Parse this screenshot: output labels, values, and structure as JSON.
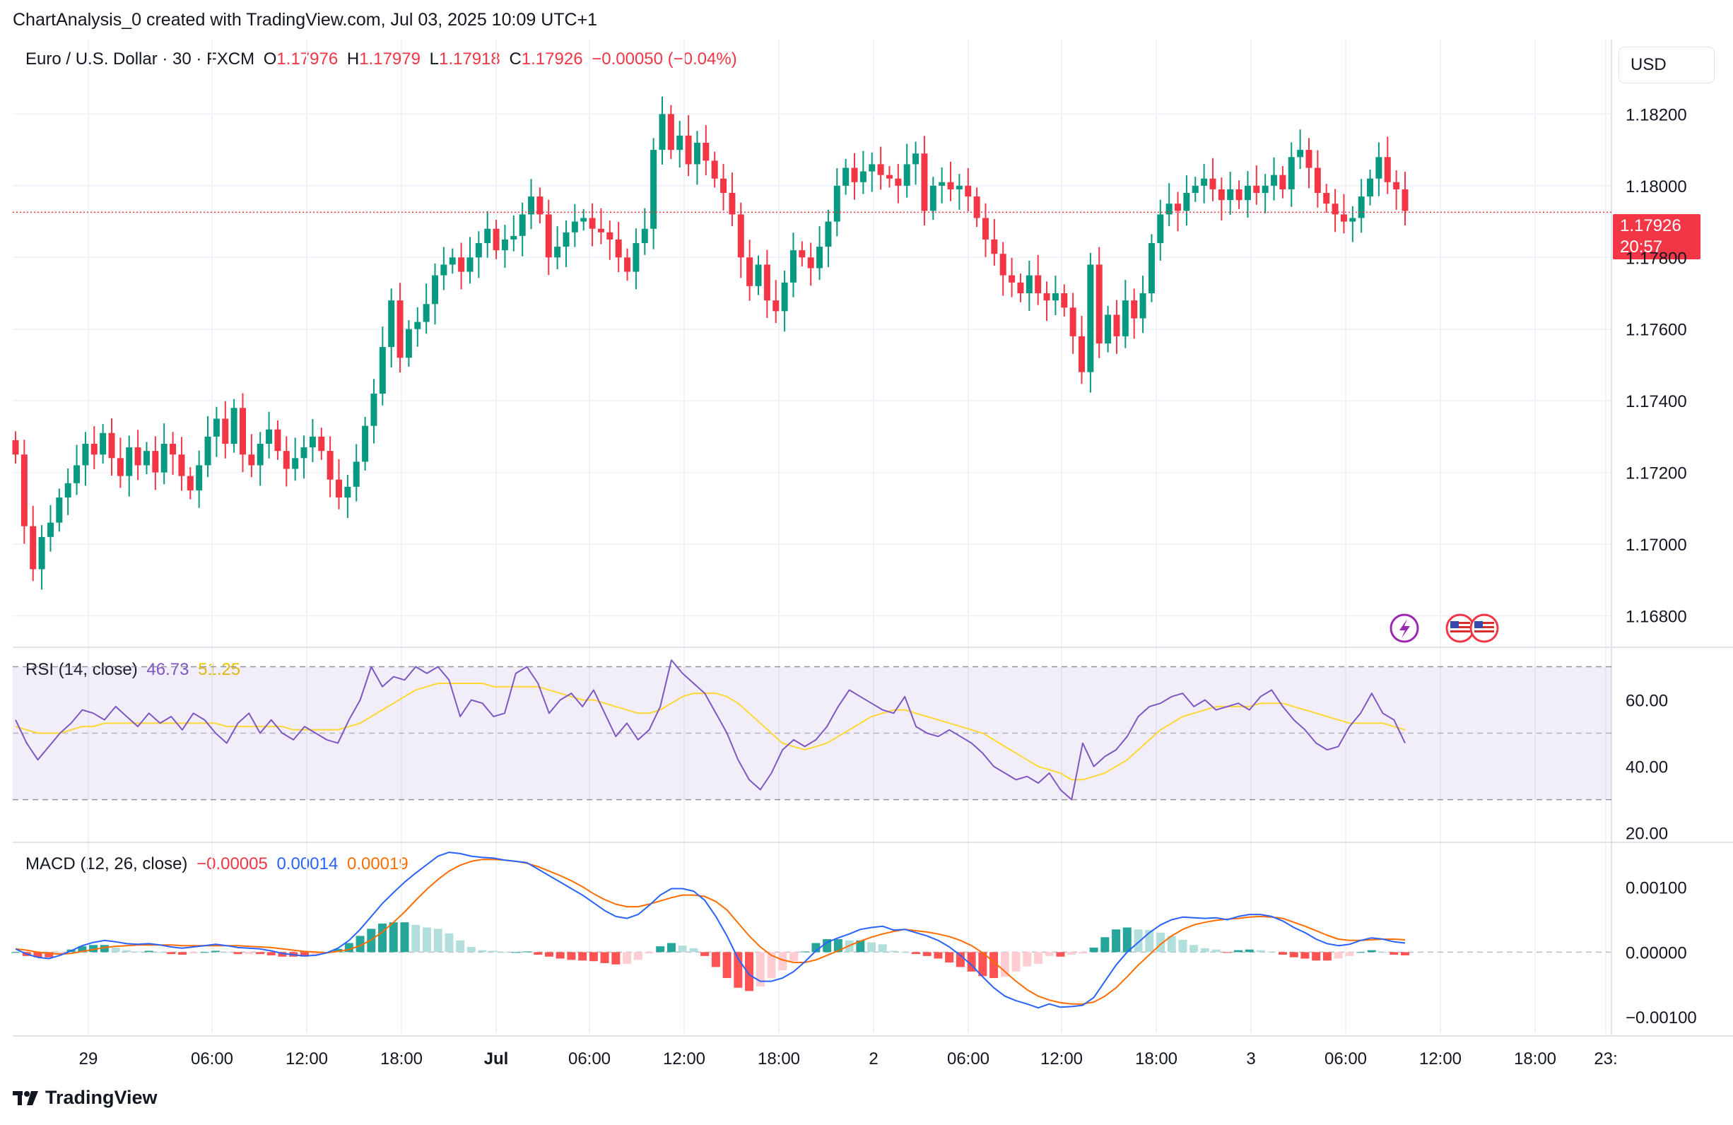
{
  "header": {
    "title": "ChartAnalysis_0 created with TradingView.com, Jul 03, 2025 10:09 UTC+1"
  },
  "main_pane": {
    "symbol": "Euro / U.S. Dollar · 30 · FXCM",
    "open_label": "O",
    "open_value": "1.17976",
    "high_label": "H",
    "high_value": "1.17979",
    "low_label": "L",
    "low_value": "1.17918",
    "close_label": "C",
    "close_value": "1.17926",
    "change": "−0.00050 (−0.04%)",
    "currency": "USD",
    "last_price": "1.17926",
    "countdown": "20:57"
  },
  "rsi_pane": {
    "title": "RSI (14, close)",
    "rsi_value": "46.73",
    "ma_value": "51.25"
  },
  "macd_pane": {
    "title": "MACD (12, 26, close)",
    "histogram_value": "−0.00005",
    "macd_value": "0.00014",
    "signal_value": "0.00019"
  },
  "footer": {
    "brand": "TradingView"
  },
  "colors": {
    "up": "#089981",
    "down": "#f23645",
    "rsi": "#7e57c2",
    "rsi_ma": "#fdd835",
    "macd": "#2962ff",
    "signal": "#ff6d00",
    "hist_up_strong": "#26a69a",
    "hist_up_weak": "#b2dfdb",
    "hist_down_strong": "#ff5252",
    "hist_down_weak": "#ffcdd2",
    "rsi_band": "#7e57c2"
  },
  "icons": [
    "lightning-icon",
    "us-flag-icon",
    "tradingview-logo-icon"
  ],
  "chart_data": [
    {
      "type": "candlestick",
      "series_name": "EUR/USD 30m",
      "x_ticks": [
        "29",
        "06:00",
        "12:00",
        "18:00",
        "Jul",
        "06:00",
        "12:00",
        "18:00",
        "2",
        "06:00",
        "12:00",
        "18:00",
        "3",
        "06:00",
        "12:00",
        "18:00",
        "23:"
      ],
      "y_ticks": [
        "1.18200",
        "1.18000",
        "1.17800",
        "1.17600",
        "1.17400",
        "1.17200",
        "1.17000",
        "1.16800"
      ],
      "ylim": [
        1.1672,
        1.184
      ],
      "closes": [
        1.1725,
        1.1705,
        1.1693,
        1.1702,
        1.1706,
        1.1713,
        1.1717,
        1.1722,
        1.1728,
        1.1725,
        1.1731,
        1.1724,
        1.1719,
        1.1727,
        1.1722,
        1.1726,
        1.172,
        1.1728,
        1.1725,
        1.1719,
        1.1715,
        1.1722,
        1.173,
        1.1735,
        1.1728,
        1.1738,
        1.1725,
        1.1722,
        1.1728,
        1.1732,
        1.1726,
        1.1721,
        1.1724,
        1.1727,
        1.173,
        1.1726,
        1.1718,
        1.1713,
        1.1716,
        1.1723,
        1.1733,
        1.1742,
        1.1755,
        1.1768,
        1.1752,
        1.176,
        1.1762,
        1.1767,
        1.1775,
        1.1778,
        1.178,
        1.1776,
        1.178,
        1.1784,
        1.1788,
        1.1782,
        1.1785,
        1.1786,
        1.1792,
        1.1797,
        1.1792,
        1.178,
        1.1783,
        1.1787,
        1.179,
        1.1791,
        1.1788,
        1.1787,
        1.1785,
        1.178,
        1.1776,
        1.1784,
        1.1788,
        1.181,
        1.182,
        1.181,
        1.1814,
        1.1806,
        1.1812,
        1.1807,
        1.1802,
        1.1798,
        1.1792,
        1.178,
        1.1772,
        1.1778,
        1.1768,
        1.1765,
        1.1773,
        1.1782,
        1.178,
        1.1777,
        1.1783,
        1.179,
        1.18,
        1.1805,
        1.1801,
        1.1804,
        1.1806,
        1.1803,
        1.1802,
        1.18,
        1.1806,
        1.1809,
        1.1793,
        1.18,
        1.1801,
        1.1799,
        1.18,
        1.1797,
        1.1791,
        1.1785,
        1.1781,
        1.1775,
        1.1773,
        1.177,
        1.1775,
        1.177,
        1.1768,
        1.177,
        1.1766,
        1.1758,
        1.1748,
        1.1778,
        1.1756,
        1.1764,
        1.1758,
        1.1768,
        1.1763,
        1.177,
        1.1784,
        1.1792,
        1.1795,
        1.1793,
        1.1798,
        1.18,
        1.1802,
        1.1799,
        1.1796,
        1.1799,
        1.1796,
        1.18,
        1.1798,
        1.18,
        1.1803,
        1.1799,
        1.1808,
        1.181,
        1.1805,
        1.1798,
        1.1795,
        1.1792,
        1.179,
        1.1791,
        1.1797,
        1.1802,
        1.1808,
        1.1801,
        1.1799,
        1.1793
      ],
      "y_unit": "USD"
    },
    {
      "type": "line",
      "title": "RSI (14, close)",
      "y_ticks": [
        "60.00",
        "40.00",
        "20.00"
      ],
      "ylim": [
        18,
        75
      ],
      "bands": {
        "upper": 70,
        "middle": 50,
        "lower": 30
      },
      "series": [
        {
          "name": "RSI",
          "values": [
            54,
            47,
            42,
            46,
            50,
            53,
            57,
            56,
            54,
            58,
            55,
            52,
            56,
            53,
            55,
            51,
            56,
            54,
            50,
            47,
            53,
            56,
            50,
            54,
            50,
            48,
            52,
            50,
            48,
            47,
            54,
            60,
            70,
            64,
            67,
            66,
            70,
            68,
            70,
            66,
            55,
            60,
            59,
            55,
            56,
            68,
            70,
            65,
            56,
            60,
            62,
            58,
            63,
            56,
            49,
            53,
            48,
            51,
            58,
            72,
            68,
            65,
            62,
            56,
            50,
            42,
            36,
            33,
            38,
            45,
            48,
            46,
            48,
            52,
            58,
            63,
            61,
            59,
            57,
            56,
            61,
            52,
            50,
            49,
            51,
            49,
            47,
            44,
            40,
            38,
            36,
            37,
            35,
            38,
            33,
            30,
            47,
            40,
            43,
            45,
            49,
            55,
            58,
            59,
            61,
            62,
            58,
            60,
            57,
            58,
            59,
            57,
            61,
            63,
            58,
            54,
            51,
            47,
            45,
            46,
            52,
            56,
            62,
            56,
            54,
            47
          ]
        },
        {
          "name": "RSI-based MA",
          "values": [
            52,
            51,
            50,
            50,
            50,
            51,
            52,
            52,
            53,
            53,
            53,
            53,
            53,
            53,
            53,
            53,
            53,
            53,
            53,
            52,
            52,
            52,
            52,
            52,
            52,
            51,
            51,
            51,
            51,
            51,
            52,
            53,
            55,
            57,
            59,
            61,
            63,
            64,
            65,
            65,
            65,
            65,
            65,
            64,
            64,
            64,
            64,
            64,
            63,
            62,
            61,
            60,
            60,
            59,
            58,
            57,
            56,
            56,
            57,
            59,
            61,
            62,
            62,
            62,
            61,
            59,
            56,
            53,
            50,
            47,
            46,
            45,
            46,
            47,
            49,
            51,
            53,
            55,
            56,
            57,
            57,
            56,
            55,
            54,
            53,
            52,
            51,
            50,
            48,
            46,
            44,
            42,
            40,
            39,
            38,
            36,
            36,
            37,
            38,
            40,
            42,
            45,
            48,
            51,
            53,
            55,
            56,
            57,
            58,
            58,
            58,
            58,
            59,
            59,
            59,
            58,
            57,
            56,
            55,
            54,
            53,
            53,
            53,
            53,
            52,
            51
          ]
        }
      ]
    },
    {
      "type": "line",
      "title": "MACD (12, 26, close)",
      "y_ticks": [
        "0.00100",
        "0.00000",
        "−0.00100"
      ],
      "ylim": [
        -0.00125,
        0.00165
      ],
      "series": [
        {
          "name": "MACD",
          "values": [
            5e-05,
            -3e-05,
            -8e-05,
            -0.0001,
            -5e-05,
            2e-05,
            0.0001,
            0.00015,
            0.00018,
            0.00016,
            0.00013,
            0.00012,
            0.00013,
            0.00011,
            8e-05,
            6e-05,
            8e-05,
            0.0001,
            0.00012,
            0.0001,
            7e-05,
            6e-05,
            5e-05,
            2e-05,
            -2e-05,
            -4e-05,
            -6e-05,
            -5e-05,
            -1e-05,
            6e-05,
            0.00018,
            0.00035,
            0.00055,
            0.00075,
            0.00092,
            0.00108,
            0.00122,
            0.00135,
            0.00148,
            0.00154,
            0.00152,
            0.00148,
            0.00146,
            0.00145,
            0.00142,
            0.0014,
            0.00138,
            0.00128,
            0.00118,
            0.00108,
            0.00098,
            0.00088,
            0.00076,
            0.00064,
            0.00055,
            0.00052,
            0.00058,
            0.00072,
            0.00088,
            0.00098,
            0.00098,
            0.00094,
            0.0008,
            0.00055,
            0.00025,
            -0.0001,
            -0.00035,
            -0.00045,
            -0.00045,
            -0.0004,
            -0.0003,
            -0.00015,
            2e-05,
            0.00015,
            0.00022,
            0.00028,
            0.00035,
            0.00038,
            0.0004,
            0.00034,
            0.00035,
            0.0003,
            0.00025,
            0.00018,
            8e-05,
            -5e-05,
            -0.0002,
            -0.00038,
            -0.00055,
            -0.00068,
            -0.00075,
            -0.0008,
            -0.00086,
            -0.0008,
            -0.00085,
            -0.00084,
            -0.00082,
            -0.0007,
            -0.00045,
            -0.0002,
            0.0,
            0.00015,
            0.0003,
            0.00042,
            0.0005,
            0.00054,
            0.00053,
            0.00052,
            0.00053,
            0.0005,
            0.00055,
            0.00058,
            0.00058,
            0.00055,
            0.00048,
            0.00038,
            0.0003,
            0.0002,
            0.00013,
            0.0001,
            0.00012,
            0.00018,
            0.00022,
            0.0002,
            0.00016,
            0.00014
          ]
        },
        {
          "name": "Signal",
          "values": [
            5e-05,
            3e-05,
            0.0,
            -2e-05,
            -3e-05,
            -2e-05,
            1e-05,
            4e-05,
            7e-05,
            9e-05,
            0.0001,
            0.00011,
            0.00011,
            0.00011,
            0.00011,
            0.0001,
            0.0001,
            0.0001,
            0.0001,
            0.0001,
            0.0001,
            9e-05,
            8e-05,
            7e-05,
            5e-05,
            3e-05,
            1e-05,
            0.0,
            -1e-05,
            1e-05,
            4e-05,
            0.0001,
            0.00019,
            0.00031,
            0.00046,
            0.00062,
            0.0008,
            0.00097,
            0.00112,
            0.00125,
            0.00134,
            0.0014,
            0.00143,
            0.00143,
            0.00142,
            0.0014,
            0.00137,
            0.00132,
            0.00125,
            0.00118,
            0.0011,
            0.00101,
            0.0009,
            0.00081,
            0.00074,
            0.0007,
            0.0007,
            0.00074,
            0.00079,
            0.00084,
            0.00088,
            0.00088,
            0.00086,
            0.00078,
            0.00065,
            0.00045,
            0.00025,
            8e-05,
            -5e-05,
            -0.00012,
            -0.00016,
            -0.00016,
            -0.00012,
            -5e-05,
            2e-05,
            0.0001,
            0.00017,
            0.00023,
            0.00028,
            0.00032,
            0.00035,
            0.00033,
            0.00031,
            0.00028,
            0.00024,
            0.00018,
            0.0001,
            -1e-05,
            -0.00015,
            -0.0003,
            -0.00045,
            -0.00058,
            -0.00068,
            -0.00074,
            -0.00078,
            -0.0008,
            -0.0008,
            -0.00077,
            -0.00068,
            -0.00055,
            -0.00038,
            -0.0002,
            -4e-05,
            0.00012,
            0.00025,
            0.00035,
            0.00042,
            0.00046,
            0.00049,
            0.00051,
            0.00052,
            0.00054,
            0.00055,
            0.00054,
            0.00052,
            0.00046,
            0.0004,
            0.00033,
            0.00026,
            0.0002,
            0.00018,
            0.00018,
            0.00019,
            0.0002,
            0.0002,
            0.00019
          ]
        }
      ]
    }
  ]
}
